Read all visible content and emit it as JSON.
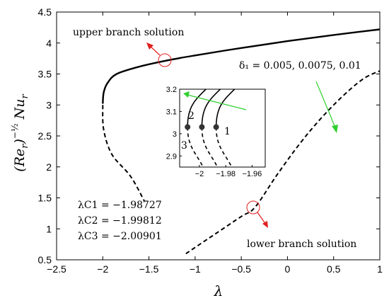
{
  "chart_data": [
    {
      "type": "line",
      "title": "",
      "xlabel": "λ",
      "ylabel": "(Re_r)^{-1/2} Nu_r",
      "xlim": [
        -2.5,
        1
      ],
      "ylim": [
        0.5,
        4.5
      ],
      "xticks": [
        "-2.5",
        "-2",
        "-1.5",
        "-1",
        "-0.5",
        "0",
        "0.5",
        "1"
      ],
      "yticks": [
        "0.5",
        "1",
        "1.5",
        "2",
        "2.5",
        "3",
        "3.5",
        "4",
        "4.5"
      ],
      "grid": false,
      "series": [
        {
          "name": "upper branch solution",
          "style": "solid",
          "points": [
            [
              -2.0,
              3.02
            ],
            [
              -1.99,
              3.2
            ],
            [
              -1.95,
              3.35
            ],
            [
              -1.85,
              3.5
            ],
            [
              -1.6,
              3.62
            ],
            [
              -1.3,
              3.72
            ],
            [
              -1.0,
              3.8
            ],
            [
              -0.5,
              3.92
            ],
            [
              0.0,
              4.03
            ],
            [
              0.5,
              4.13
            ],
            [
              1.0,
              4.22
            ]
          ]
        },
        {
          "name": "lower branch solution",
          "style": "dashed",
          "points": [
            [
              -2.0,
              3.0
            ],
            [
              -1.99,
              2.6
            ],
            [
              -1.9,
              2.2
            ],
            [
              -1.7,
              1.85
            ],
            [
              -1.55,
              1.45
            ],
            [
              -1.1,
              0.6
            ],
            [
              -0.8,
              0.9
            ],
            [
              -0.5,
              1.2
            ],
            [
              -0.35,
              1.35
            ],
            [
              -0.1,
              1.9
            ],
            [
              0.2,
              2.5
            ],
            [
              0.5,
              3.0
            ],
            [
              0.8,
              3.4
            ],
            [
              1.0,
              3.55
            ]
          ]
        }
      ]
    },
    {
      "type": "line",
      "title": "",
      "xlim": [
        -2.015,
        -1.95
      ],
      "ylim": [
        2.85,
        3.2
      ],
      "xticks": [
        "-2",
        "-1.98",
        "-1.96"
      ],
      "yticks": [
        "2.9",
        "3",
        "3.1",
        "3.2"
      ],
      "critical_points": [
        {
          "label": "3",
          "x": -2.00901,
          "y": 3.03
        },
        {
          "label": "2",
          "x": -1.99812,
          "y": 3.03
        },
        {
          "label": "1",
          "x": -1.98727,
          "y": 3.03
        }
      ]
    }
  ],
  "annotations": {
    "upper_branch": "upper branch solution",
    "lower_branch": "lower branch solution",
    "delta": "δ₁ = 0.005, 0.0075, 0.01",
    "lambda_c": [
      {
        "label": "λC1 = −1.98727"
      },
      {
        "label": "λC2 = −1.99812"
      },
      {
        "label": "λC3 = −2.00901"
      }
    ],
    "curve_labels": [
      "1",
      "2",
      "3"
    ]
  }
}
